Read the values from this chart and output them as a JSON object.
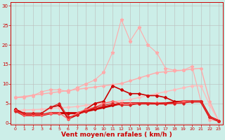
{
  "background_color": "#cceee8",
  "grid_color": "#bbbbbb",
  "xlabel": "Vent moyen/en rafales ( km/h )",
  "xlabel_color": "#cc0000",
  "xlabel_fontsize": 6.5,
  "xticks": [
    0,
    1,
    2,
    3,
    4,
    5,
    6,
    7,
    8,
    9,
    10,
    11,
    12,
    13,
    14,
    15,
    16,
    17,
    18,
    19,
    20,
    21,
    22,
    23
  ],
  "yticks": [
    0,
    5,
    10,
    15,
    20,
    25,
    30
  ],
  "ylim": [
    -0.5,
    31
  ],
  "xlim": [
    -0.5,
    23.5
  ],
  "lines": [
    {
      "x": [
        0,
        1,
        2,
        3,
        4,
        5,
        6,
        7,
        8,
        9,
        10,
        11,
        12,
        13,
        14,
        15,
        16,
        17,
        18,
        19,
        20,
        21,
        22,
        23
      ],
      "y": [
        6.5,
        6.8,
        7.1,
        7.4,
        7.7,
        8.0,
        8.3,
        8.6,
        8.9,
        9.2,
        9.5,
        9.8,
        10.1,
        10.8,
        11.5,
        12.2,
        12.9,
        13.1,
        13.3,
        13.5,
        13.8,
        14.0,
        5.5,
        0.5
      ],
      "color": "#ffaaaa",
      "lw": 1.0,
      "marker": "D",
      "ms": 2,
      "ls": "-"
    },
    {
      "x": [
        0,
        1,
        2,
        3,
        4,
        5,
        6,
        7,
        8,
        9,
        10,
        11,
        12,
        13,
        14,
        15,
        16,
        17,
        18,
        19,
        20,
        21,
        22,
        23
      ],
      "y": [
        6.5,
        6.5,
        7.0,
        8.0,
        8.5,
        8.5,
        8.0,
        9.0,
        10.0,
        11.0,
        13.0,
        18.0,
        26.5,
        21.0,
        24.5,
        20.0,
        18.0,
        14.0,
        13.5,
        13.5,
        14.5,
        5.5,
        0.8,
        0.5
      ],
      "color": "#ffaaaa",
      "lw": 0.8,
      "marker": "*",
      "ms": 3.5,
      "ls": "-"
    },
    {
      "x": [
        0,
        1,
        2,
        3,
        4,
        5,
        6,
        7,
        8,
        9,
        10,
        11,
        12,
        13,
        14,
        15,
        16,
        17,
        18,
        19,
        20,
        21,
        22,
        23
      ],
      "y": [
        3.2,
        3.3,
        3.4,
        3.5,
        3.7,
        3.9,
        4.0,
        4.2,
        4.5,
        4.8,
        5.1,
        5.4,
        5.7,
        6.0,
        6.5,
        7.0,
        7.5,
        8.0,
        8.5,
        9.0,
        9.5,
        9.5,
        4.5,
        0.5
      ],
      "color": "#ffbbbb",
      "lw": 1.0,
      "marker": "D",
      "ms": 2,
      "ls": "-"
    },
    {
      "x": [
        0,
        1,
        2,
        3,
        4,
        5,
        6,
        7,
        8,
        9,
        10,
        11,
        12,
        13,
        14,
        15,
        16,
        17,
        18,
        19,
        20,
        21,
        22,
        23
      ],
      "y": [
        3.5,
        2.5,
        2.5,
        2.5,
        4.0,
        4.5,
        1.0,
        2.0,
        3.5,
        5.0,
        5.5,
        9.5,
        8.5,
        7.5,
        7.5,
        7.0,
        7.0,
        6.5,
        5.5,
        5.5,
        5.5,
        5.5,
        1.5,
        0.5
      ],
      "color": "#cc0000",
      "lw": 1.2,
      "marker": "D",
      "ms": 2,
      "ls": "-"
    },
    {
      "x": [
        0,
        1,
        2,
        3,
        4,
        5,
        6,
        7,
        8,
        9,
        10,
        11,
        12,
        13,
        14,
        15,
        16,
        17,
        18,
        19,
        20,
        21,
        22,
        23
      ],
      "y": [
        3.2,
        2.0,
        2.0,
        2.0,
        2.5,
        2.5,
        2.5,
        2.5,
        3.0,
        3.5,
        4.0,
        4.5,
        5.0,
        5.0,
        5.0,
        5.0,
        5.0,
        5.0,
        5.2,
        5.5,
        5.5,
        5.5,
        1.5,
        0.5
      ],
      "color": "#cc0000",
      "lw": 2.2,
      "marker": "D",
      "ms": 2,
      "ls": "-"
    },
    {
      "x": [
        0,
        1,
        2,
        3,
        4,
        5,
        6,
        7,
        8,
        9,
        10,
        11,
        12,
        13,
        14,
        15,
        16,
        17,
        18,
        19,
        20,
        21,
        22,
        23
      ],
      "y": [
        3.2,
        2.0,
        2.0,
        2.0,
        2.5,
        2.5,
        1.0,
        2.5,
        3.5,
        4.0,
        5.0,
        5.5,
        5.0,
        5.0,
        5.0,
        5.0,
        5.2,
        5.0,
        5.0,
        5.5,
        5.5,
        5.5,
        1.5,
        0.5
      ],
      "color": "#ff6666",
      "lw": 1.0,
      "marker": "D",
      "ms": 2,
      "ls": "-"
    },
    {
      "x": [
        0,
        1,
        2,
        3,
        4,
        5,
        6,
        7,
        8,
        9,
        10,
        11,
        12,
        13,
        14,
        15,
        16,
        17,
        18,
        19,
        20,
        21,
        22,
        23
      ],
      "y": [
        3.0,
        2.5,
        2.5,
        2.5,
        4.0,
        5.0,
        1.5,
        2.0,
        3.0,
        4.0,
        4.5,
        5.0,
        4.5,
        4.5,
        5.0,
        5.0,
        5.0,
        5.0,
        5.0,
        5.0,
        5.5,
        5.5,
        1.5,
        0.5
      ],
      "color": "#dd2222",
      "lw": 0.8,
      "marker": "D",
      "ms": 1.8,
      "ls": "-"
    }
  ]
}
